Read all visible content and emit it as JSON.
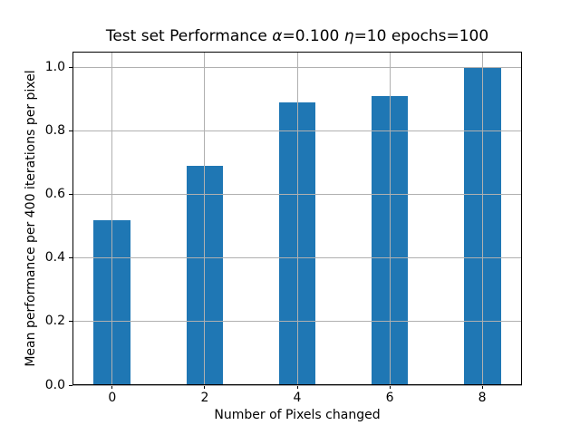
{
  "chart_data": {
    "type": "bar",
    "title": "Test set Performance α=0.100 η=10 epochs=100",
    "title_parts": [
      {
        "text": "Test set Performance ",
        "italic": false
      },
      {
        "text": "α",
        "italic": true
      },
      {
        "text": "=0.100 ",
        "italic": false
      },
      {
        "text": "η",
        "italic": true
      },
      {
        "text": "=10 epochs=100",
        "italic": false
      }
    ],
    "xlabel": "Number of Pixels changed",
    "ylabel": "Mean performance per 400 iterations per pixel",
    "categories": [
      0,
      2,
      4,
      6,
      8
    ],
    "values": [
      0.52,
      0.69,
      0.89,
      0.91,
      1.0
    ],
    "bar_width": 0.8,
    "xlim": [
      -0.86,
      8.86
    ],
    "ylim": [
      0,
      1.05
    ],
    "xticks": [
      0,
      2,
      4,
      6,
      8
    ],
    "xtick_labels": [
      "0",
      "2",
      "4",
      "6",
      "8"
    ],
    "yticks": [
      0.0,
      0.2,
      0.4,
      0.6,
      0.8,
      1.0
    ],
    "ytick_labels": [
      "0.0",
      "0.2",
      "0.4",
      "0.6",
      "0.8",
      "1.0"
    ],
    "grid": true,
    "grid_over_bars": true,
    "legend": false,
    "bar_color": "#1f77b4",
    "grid_color": "#b0b0b0",
    "spine_color": "#000000",
    "background_color": "#ffffff"
  }
}
